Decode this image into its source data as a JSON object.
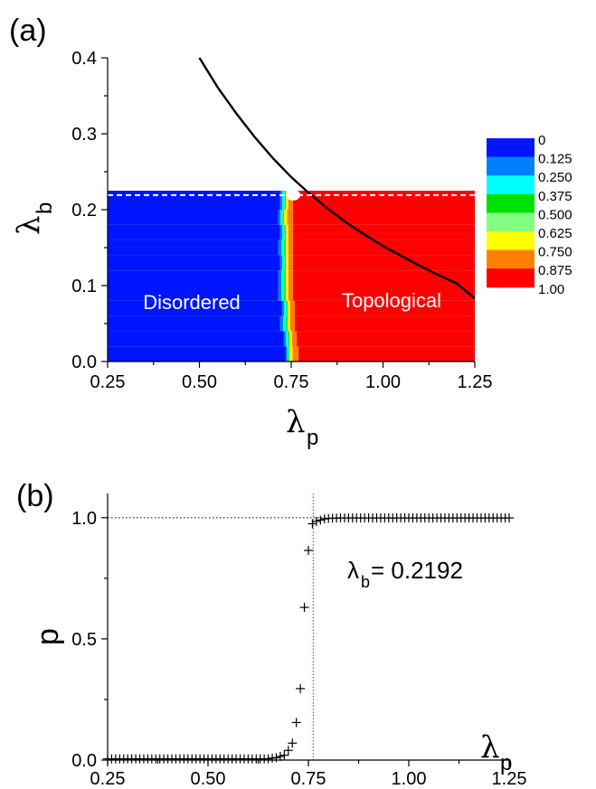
{
  "chart_data": [
    {
      "type": "heatmap",
      "panel_label": "(a)",
      "xlabel": "λ",
      "xlabel_sub": "p",
      "ylabel": "λ",
      "ylabel_sub": "b",
      "xlim": [
        0.25,
        1.25
      ],
      "ylim": [
        0.0,
        0.4
      ],
      "xticks": [
        "0.25",
        "0.50",
        "0.75",
        "1.00",
        "1.25"
      ],
      "yticks": [
        "0.0",
        "0.1",
        "0.2",
        "0.3",
        "0.4"
      ],
      "data_region": {
        "lambda_b_max": 0.225
      },
      "dashed_line_lambda_b": 0.2192,
      "boundary_by_row": [
        {
          "lambda_b": 0.0,
          "start": 0.735,
          "mid": 0.745,
          "end": 0.77
        },
        {
          "lambda_b": 0.02,
          "start": 0.73,
          "mid": 0.745,
          "end": 0.765
        },
        {
          "lambda_b": 0.04,
          "start": 0.72,
          "mid": 0.74,
          "end": 0.76
        },
        {
          "lambda_b": 0.06,
          "start": 0.725,
          "mid": 0.74,
          "end": 0.76
        },
        {
          "lambda_b": 0.08,
          "start": 0.715,
          "mid": 0.735,
          "end": 0.755
        },
        {
          "lambda_b": 0.1,
          "start": 0.715,
          "mid": 0.735,
          "end": 0.755
        },
        {
          "lambda_b": 0.12,
          "start": 0.72,
          "mid": 0.735,
          "end": 0.755
        },
        {
          "lambda_b": 0.14,
          "start": 0.715,
          "mid": 0.735,
          "end": 0.755
        },
        {
          "lambda_b": 0.16,
          "start": 0.72,
          "mid": 0.735,
          "end": 0.755
        },
        {
          "lambda_b": 0.18,
          "start": 0.715,
          "mid": 0.73,
          "end": 0.755
        },
        {
          "lambda_b": 0.2,
          "start": 0.72,
          "mid": 0.735,
          "end": 0.755
        }
      ],
      "curve": {
        "lambda_p": [
          0.5,
          0.55,
          0.6,
          0.65,
          0.7,
          0.75,
          0.8,
          0.85,
          0.9,
          0.95,
          1.0,
          1.05,
          1.1,
          1.15,
          1.2,
          1.25
        ],
        "lambda_b": [
          0.4,
          0.361,
          0.327,
          0.296,
          0.268,
          0.243,
          0.221,
          0.201,
          0.183,
          0.167,
          0.152,
          0.139,
          0.126,
          0.114,
          0.103,
          0.083
        ]
      },
      "regions": [
        {
          "label": "Disordered"
        },
        {
          "label": "Topological"
        }
      ],
      "legend": {
        "placement": "right",
        "entries": [
          {
            "label": "0",
            "color": "#0015ff"
          },
          {
            "label": "0.125",
            "color": "#0080ff"
          },
          {
            "label": "0.250",
            "color": "#00ffff"
          },
          {
            "label": "0.375",
            "color": "#00e000"
          },
          {
            "label": "0.500",
            "color": "#80ff80"
          },
          {
            "label": "0.625",
            "color": "#ffff00"
          },
          {
            "label": "0.750",
            "color": "#ff8000"
          },
          {
            "label": "0.875",
            "color": "#ff0000"
          }
        ],
        "last_label": "1.00"
      }
    },
    {
      "type": "scatter",
      "panel_label": "(b)",
      "ylabel": "p",
      "xlabel": "λ",
      "xlabel_sub": "p",
      "xlim": [
        0.25,
        1.25
      ],
      "ylim": [
        0.0,
        1.1
      ],
      "xticks": [
        "0.25",
        "0.50",
        "0.75",
        "1.00",
        "1.25"
      ],
      "yticks": [
        "0.0",
        "0.5",
        "1.0"
      ],
      "reference_line_y": 1.0,
      "transition_x": 0.762,
      "annotation": {
        "main": "λ",
        "sub": "b",
        "rest": "= 0.2192"
      },
      "points": {
        "x": [
          0.25,
          0.26,
          0.27,
          0.28,
          0.29,
          0.3,
          0.31,
          0.32,
          0.33,
          0.34,
          0.35,
          0.36,
          0.37,
          0.38,
          0.39,
          0.4,
          0.41,
          0.42,
          0.43,
          0.44,
          0.45,
          0.46,
          0.47,
          0.48,
          0.49,
          0.5,
          0.51,
          0.52,
          0.53,
          0.54,
          0.55,
          0.56,
          0.57,
          0.58,
          0.59,
          0.6,
          0.61,
          0.62,
          0.63,
          0.64,
          0.65,
          0.66,
          0.67,
          0.68,
          0.69,
          0.7,
          0.71,
          0.72,
          0.73,
          0.74,
          0.75,
          0.76,
          0.77,
          0.78,
          0.79,
          0.8,
          0.81,
          0.82,
          0.83,
          0.84,
          0.85,
          0.86,
          0.87,
          0.88,
          0.89,
          0.9,
          0.91,
          0.92,
          0.93,
          0.94,
          0.95,
          0.96,
          0.97,
          0.98,
          0.99,
          1.0,
          1.01,
          1.02,
          1.03,
          1.04,
          1.05,
          1.06,
          1.07,
          1.08,
          1.09,
          1.1,
          1.11,
          1.12,
          1.13,
          1.14,
          1.15,
          1.16,
          1.17,
          1.18,
          1.19,
          1.2,
          1.21,
          1.22,
          1.23,
          1.24,
          1.25
        ],
        "y": [
          0.005,
          0.005,
          0.005,
          0.005,
          0.005,
          0.005,
          0.005,
          0.005,
          0.005,
          0.005,
          0.005,
          0.005,
          0.005,
          0.005,
          0.005,
          0.005,
          0.005,
          0.005,
          0.005,
          0.005,
          0.005,
          0.005,
          0.005,
          0.005,
          0.005,
          0.005,
          0.005,
          0.005,
          0.005,
          0.005,
          0.005,
          0.005,
          0.005,
          0.005,
          0.005,
          0.005,
          0.005,
          0.005,
          0.005,
          0.005,
          0.005,
          0.008,
          0.01,
          0.015,
          0.02,
          0.04,
          0.07,
          0.155,
          0.295,
          0.63,
          0.865,
          0.975,
          0.985,
          0.99,
          0.995,
          0.997,
          0.998,
          0.998,
          0.999,
          0.999,
          0.999,
          0.999,
          0.999,
          0.999,
          0.999,
          0.999,
          0.999,
          0.999,
          0.999,
          0.999,
          0.999,
          0.999,
          0.999,
          0.999,
          0.999,
          0.999,
          0.999,
          0.999,
          0.999,
          0.999,
          0.999,
          0.999,
          0.999,
          0.999,
          0.999,
          0.999,
          0.999,
          0.999,
          0.999,
          0.999,
          0.999,
          0.999,
          0.999,
          0.999,
          0.999,
          0.999,
          0.999,
          0.999,
          0.999,
          0.999,
          0.999
        ]
      }
    }
  ]
}
